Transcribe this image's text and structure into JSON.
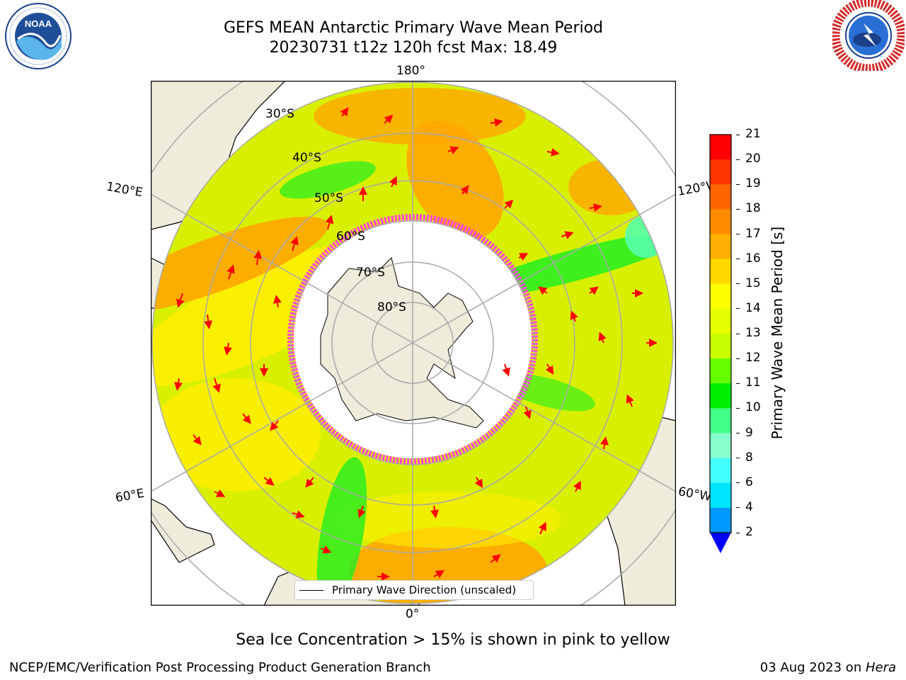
{
  "header": {
    "title_line1": "GEFS MEAN Antarctic Primary Wave Mean Period",
    "title_line2": "20230731 t12z 120h fcst   Max: 18.49"
  },
  "logos": {
    "noaa_text": "NOAA",
    "noaa_ring_text": "NATIONAL OCEANIC AND ATMOSPHERIC ADMINISTRATION · U.S. DEPARTMENT OF COMMERCE",
    "nws_ring_text": "NATIONAL WEATHER SERVICE"
  },
  "map": {
    "longitude_labels": {
      "top": "180°",
      "bottom": "0°",
      "upper_left": "120°E",
      "lower_left": "60°E",
      "upper_right": "120°W",
      "lower_right": "60°W"
    },
    "latitude_labels": [
      "30°S",
      "40°S",
      "50°S",
      "60°S",
      "70°S",
      "80°S"
    ],
    "legend_label": "Primary Wave Direction (unscaled)",
    "colors": {
      "land": "#efecdc",
      "ocean_base": "#d8f000",
      "swell_orange": "#ffa600",
      "wave_yellow": "#ffee00",
      "wave_green": "#22ee22",
      "ice_pink": "#ff44dd",
      "arrow": "#ff0000"
    }
  },
  "colorbar": {
    "title": "Primary Wave Mean Period [s]",
    "ticks": [
      "21",
      "20",
      "19",
      "18",
      "17",
      "16",
      "15",
      "14",
      "13",
      "12",
      "11",
      "10",
      "9",
      "8",
      "6",
      "4",
      "2"
    ],
    "colors": [
      "#ff0000",
      "#ff3300",
      "#ff6600",
      "#ff8c00",
      "#ffb000",
      "#ffd800",
      "#ffff00",
      "#e5ff00",
      "#c8ff00",
      "#66ff00",
      "#00ee00",
      "#44ff88",
      "#88ffcc",
      "#44ffff",
      "#00e5ff",
      "#0099ff",
      "#0055ff"
    ],
    "extend_color": "#0000ff"
  },
  "caption": "Sea Ice Concentration > 15% is shown in pink to yellow",
  "footer": {
    "left": "NCEP/EMC/Verification Post Processing Product Generation Branch",
    "right_date": "03 Aug 2023 on ",
    "right_host": "Hera"
  }
}
